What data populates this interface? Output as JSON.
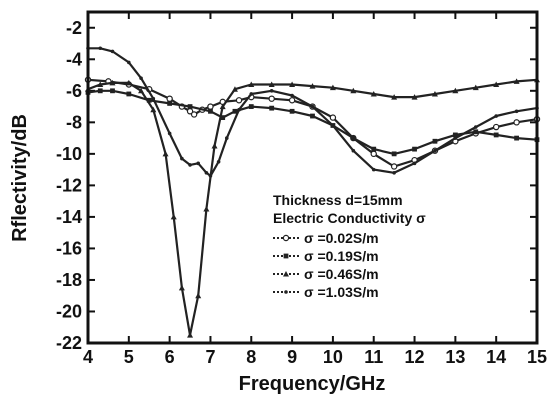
{
  "chart_data": {
    "type": "line",
    "title": "",
    "xlabel": "Frequency/GHz",
    "ylabel": "Rflectivity/dB",
    "xlim": [
      4,
      15
    ],
    "ylim": [
      -22,
      -1
    ],
    "xticks": [
      4,
      5,
      6,
      7,
      8,
      9,
      10,
      11,
      12,
      13,
      14,
      15
    ],
    "yticks": [
      -2,
      -4,
      -6,
      -8,
      -10,
      -12,
      -14,
      -16,
      -18,
      -20,
      -22
    ],
    "grid": false,
    "legend_placement": "lower-right",
    "annotations": [
      "Thickness d=15mm",
      "Electric Conductivity σ"
    ],
    "series": [
      {
        "name": "σ =0.02S/m",
        "color": "#222222",
        "marker": "open-circle",
        "x": [
          4.0,
          4.5,
          5.0,
          5.5,
          6.0,
          6.3,
          6.5,
          6.6,
          6.8,
          7.0,
          7.3,
          7.7,
          8.0,
          8.5,
          9.0,
          9.5,
          10.0,
          10.5,
          11.0,
          11.5,
          12.0,
          12.5,
          13.0,
          13.5,
          14.0,
          14.5,
          15.0
        ],
        "y": [
          -5.3,
          -5.4,
          -5.6,
          -5.9,
          -6.5,
          -7.0,
          -7.3,
          -7.5,
          -7.2,
          -7.0,
          -6.7,
          -6.6,
          -6.4,
          -6.5,
          -6.6,
          -7.0,
          -7.7,
          -9.0,
          -10.0,
          -10.8,
          -10.4,
          -9.8,
          -9.2,
          -8.7,
          -8.3,
          -8.0,
          -7.8
        ]
      },
      {
        "name": "σ =0.19S/m",
        "color": "#222222",
        "marker": "filled-square",
        "x": [
          4.0,
          4.3,
          4.6,
          5.0,
          5.5,
          6.0,
          6.5,
          7.0,
          7.3,
          7.6,
          8.0,
          8.5,
          9.0,
          9.5,
          10.0,
          10.5,
          11.0,
          11.5,
          12.0,
          12.5,
          13.0,
          13.5,
          14.0,
          14.5,
          15.0
        ],
        "y": [
          -6.1,
          -6.0,
          -6.0,
          -6.2,
          -6.6,
          -6.8,
          -7.0,
          -7.3,
          -7.7,
          -7.3,
          -7.0,
          -7.1,
          -7.3,
          -7.6,
          -8.2,
          -9.0,
          -9.7,
          -10.0,
          -9.7,
          -9.2,
          -8.8,
          -8.6,
          -8.8,
          -9.0,
          -9.1
        ]
      },
      {
        "name": "σ =0.46S/m",
        "color": "#222222",
        "marker": "filled-triangle",
        "x": [
          4.0,
          4.3,
          4.6,
          5.0,
          5.3,
          5.6,
          5.9,
          6.1,
          6.3,
          6.5,
          6.7,
          6.9,
          7.1,
          7.3,
          7.6,
          8.0,
          8.5,
          9.0,
          9.5,
          10.0,
          10.5,
          11.0,
          11.5,
          12.0,
          12.5,
          13.0,
          13.5,
          14.0,
          14.5,
          15.0
        ],
        "y": [
          -5.9,
          -5.6,
          -5.5,
          -5.5,
          -6.0,
          -7.2,
          -10.0,
          -14.0,
          -18.5,
          -21.5,
          -19.0,
          -13.5,
          -9.5,
          -7.0,
          -5.9,
          -5.6,
          -5.6,
          -5.6,
          -5.7,
          -5.8,
          -6.0,
          -6.2,
          -6.4,
          -6.4,
          -6.2,
          -6.0,
          -5.8,
          -5.6,
          -5.4,
          -5.3
        ]
      },
      {
        "name": "σ =1.03S/m",
        "color": "#222222",
        "marker": "small-dot",
        "x": [
          4.0,
          4.3,
          4.6,
          5.0,
          5.3,
          5.6,
          6.0,
          6.3,
          6.5,
          6.7,
          6.9,
          7.0,
          7.2,
          7.4,
          7.7,
          8.0,
          8.5,
          9.0,
          9.5,
          10.0,
          10.5,
          11.0,
          11.5,
          12.0,
          12.5,
          13.0,
          13.5,
          14.0,
          14.5,
          15.0
        ],
        "y": [
          -3.3,
          -3.3,
          -3.5,
          -4.2,
          -5.2,
          -6.5,
          -8.7,
          -10.3,
          -10.7,
          -10.6,
          -11.2,
          -11.4,
          -10.5,
          -9.0,
          -7.2,
          -6.2,
          -6.0,
          -6.3,
          -7.0,
          -8.2,
          -9.8,
          -11.0,
          -11.2,
          -10.6,
          -9.8,
          -9.0,
          -8.3,
          -7.6,
          -7.3,
          -7.1
        ]
      }
    ]
  }
}
